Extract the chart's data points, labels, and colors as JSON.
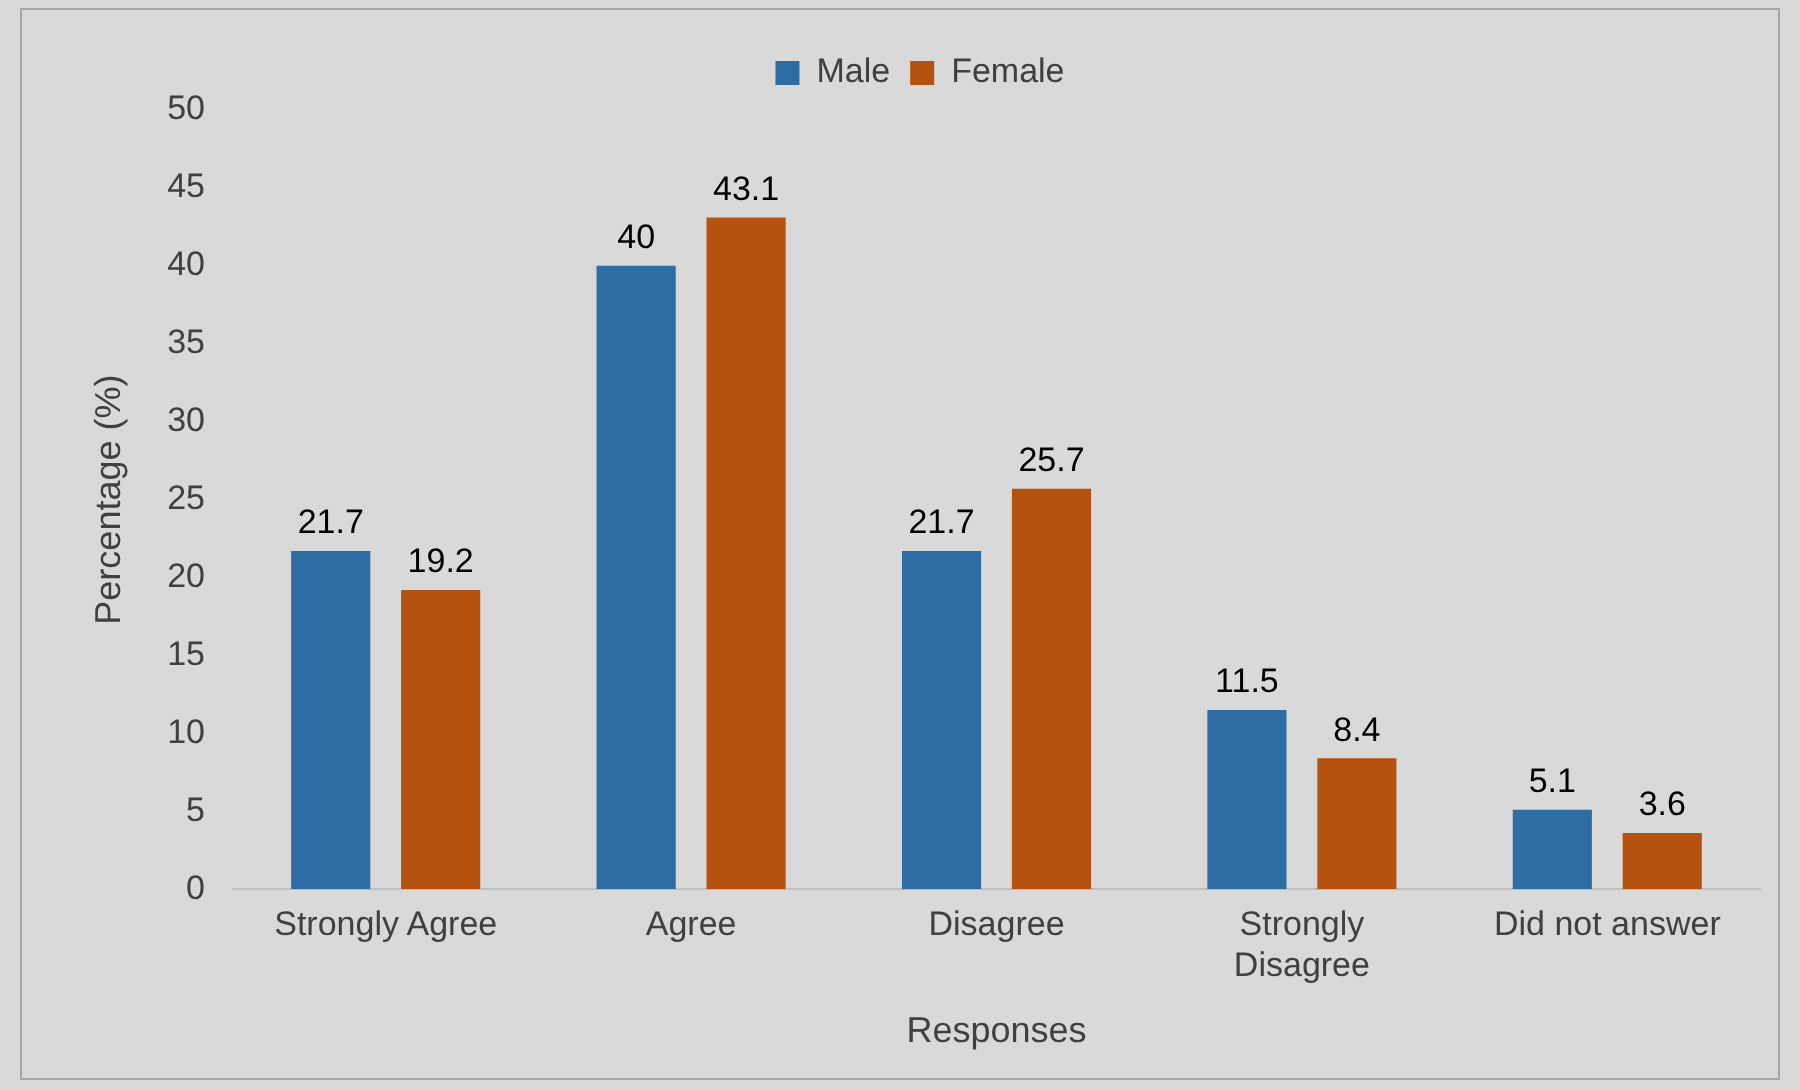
{
  "chart_data": {
    "type": "bar",
    "xlabel": "Responses",
    "ylabel": "Percentage (%)",
    "categories": [
      "Strongly Agree",
      "Agree",
      "Disagree",
      "Strongly Disagree",
      "Did not answer"
    ],
    "series": [
      {
        "name": "Male",
        "color": "#2e6ca4",
        "values": [
          21.7,
          40,
          21.7,
          11.5,
          5.1
        ]
      },
      {
        "name": "Female",
        "color": "#b5520f",
        "values": [
          19.2,
          43.1,
          25.7,
          8.4,
          3.6
        ]
      }
    ],
    "ylim": [
      0,
      50
    ],
    "yticks": [
      0,
      5,
      10,
      15,
      20,
      25,
      30,
      35,
      40,
      45,
      50
    ],
    "grid": false,
    "legend": "top",
    "data_labels": true
  }
}
